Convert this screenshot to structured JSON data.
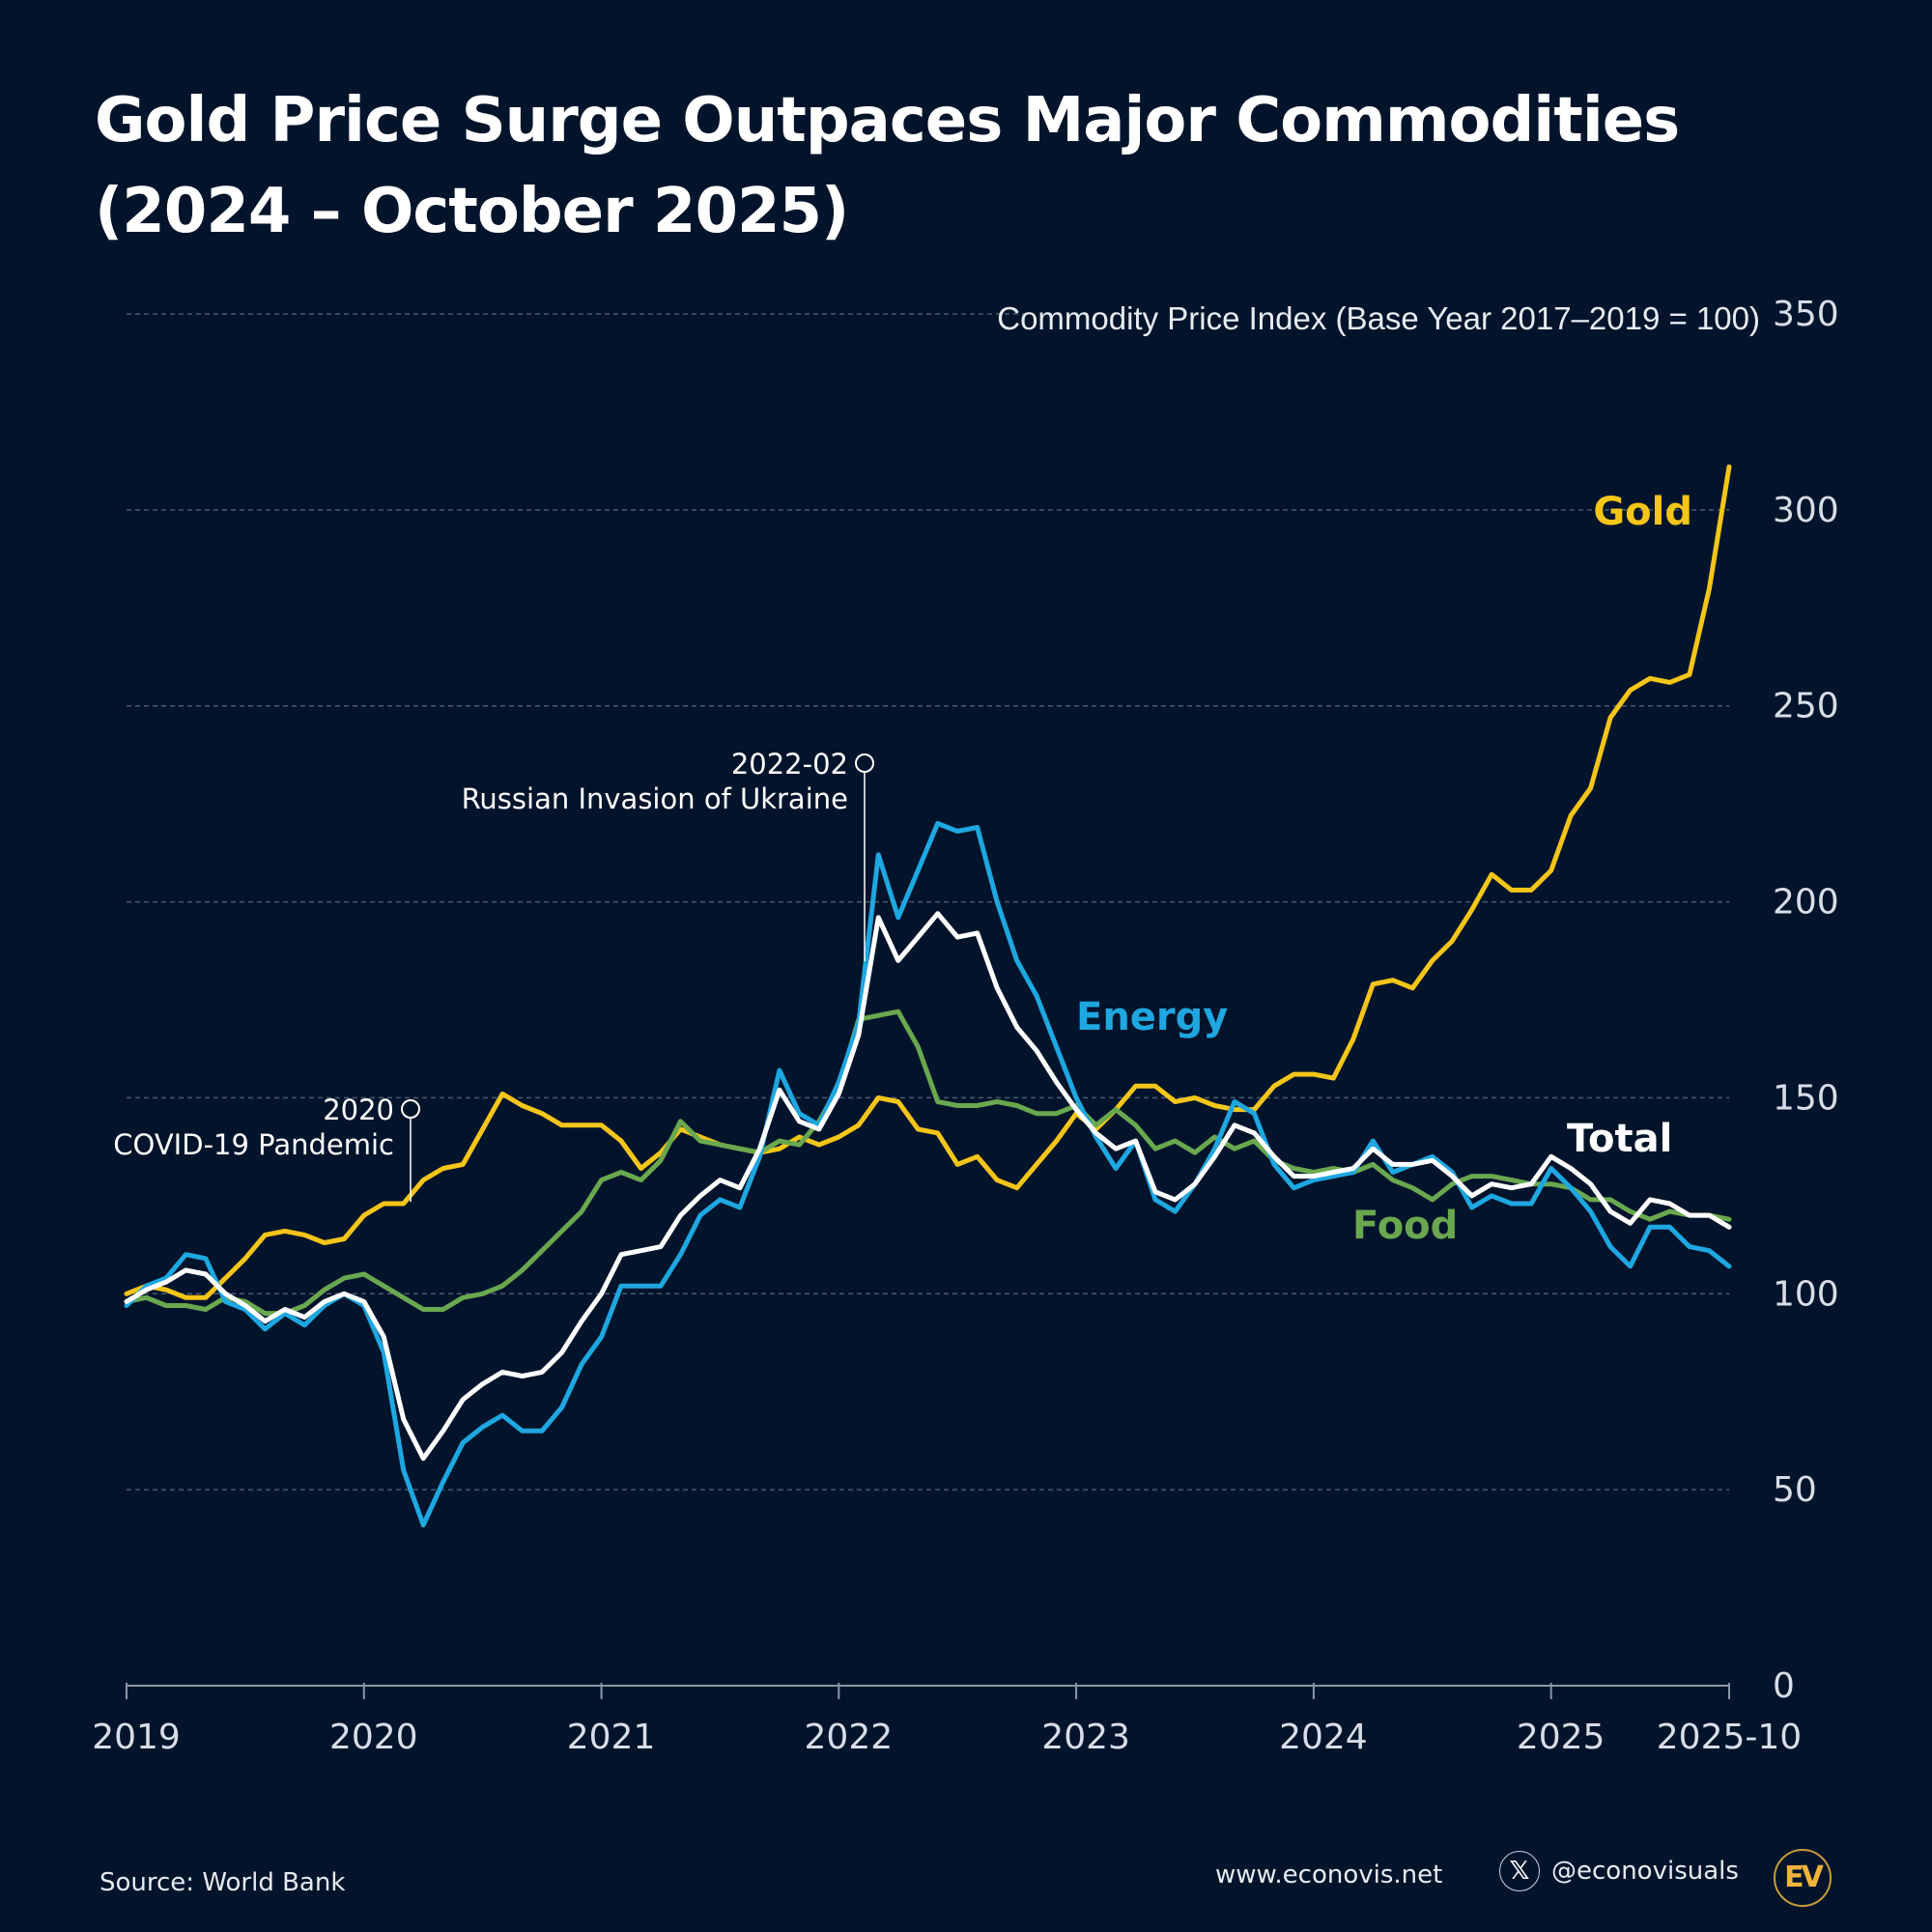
{
  "title_line1": "Gold Price Surge Outpaces Major Commodities",
  "title_line2": "(2024 – October 2025)",
  "footer": {
    "source": "Source: World Bank",
    "website": "www.econovis.net",
    "handle": "@econovisuals",
    "x_icon": "x-logo-icon",
    "logo_text": "EV"
  },
  "chart_data": {
    "type": "line",
    "ylabel": "Commodity Price Index (Base Year 2017–2019 = 100)",
    "ylim": [
      0,
      350
    ],
    "yticks": [
      "0",
      "50",
      "100",
      "150",
      "200",
      "250",
      "300",
      "350"
    ],
    "xticks": [
      "2019",
      "2020",
      "2021",
      "2022",
      "2023",
      "2024",
      "2025",
      "2025-10"
    ],
    "x_range": [
      "2019-01",
      "2025-10"
    ],
    "frequency": "monthly",
    "grid": "horizontal dashed",
    "annotations": [
      {
        "date": "2020",
        "text": "COVID-19 Pandemic",
        "at": "2020-03"
      },
      {
        "date": "2022-02",
        "text": "Russian Invasion of Ukraine",
        "at": "2022-02"
      }
    ],
    "series": [
      {
        "name": "Gold",
        "color": "#f5c518",
        "values": [
          100,
          102,
          101,
          99,
          99,
          104,
          109,
          115,
          116,
          115,
          113,
          114,
          120,
          123,
          123,
          129,
          132,
          133,
          142,
          151,
          148,
          146,
          143,
          143,
          143,
          139,
          132,
          136,
          142,
          140,
          138,
          137,
          136,
          137,
          140,
          138,
          140,
          143,
          150,
          149,
          142,
          141,
          133,
          135,
          129,
          127,
          133,
          139,
          146,
          142,
          147,
          153,
          153,
          149,
          150,
          148,
          147,
          147,
          153,
          156,
          156,
          155,
          165,
          179,
          180,
          178,
          185,
          190,
          198,
          207,
          203,
          203,
          208,
          222,
          229,
          247,
          254,
          257,
          256,
          258,
          280,
          311
        ]
      },
      {
        "name": "Energy",
        "color": "#1ea7e1",
        "values": [
          97,
          102,
          104,
          110,
          109,
          98,
          96,
          91,
          95,
          92,
          97,
          100,
          97,
          85,
          55,
          41,
          52,
          62,
          66,
          69,
          65,
          65,
          71,
          82,
          89,
          102,
          102,
          102,
          110,
          120,
          124,
          122,
          135,
          157,
          146,
          143,
          154,
          169,
          212,
          196,
          208,
          220,
          218,
          219,
          200,
          185,
          176,
          163,
          150,
          140,
          132,
          139,
          124,
          121,
          128,
          137,
          149,
          146,
          133,
          127,
          129,
          130,
          131,
          139,
          131,
          133,
          135,
          131,
          122,
          125,
          123,
          123,
          132,
          127,
          121,
          112,
          107,
          117,
          117,
          112,
          111,
          107
        ]
      },
      {
        "name": "Total",
        "color": "#ffffff",
        "values": [
          98,
          101,
          103,
          106,
          105,
          100,
          97,
          93,
          96,
          94,
          98,
          100,
          98,
          89,
          68,
          58,
          65,
          73,
          77,
          80,
          79,
          80,
          85,
          93,
          100,
          110,
          111,
          112,
          120,
          125,
          129,
          127,
          137,
          152,
          144,
          142,
          151,
          166,
          196,
          185,
          191,
          197,
          191,
          192,
          178,
          168,
          162,
          154,
          147,
          141,
          137,
          139,
          126,
          124,
          128,
          135,
          143,
          141,
          135,
          130,
          130,
          131,
          132,
          137,
          133,
          133,
          134,
          130,
          125,
          128,
          127,
          128,
          135,
          132,
          128,
          121,
          118,
          124,
          123,
          120,
          120,
          117
        ]
      },
      {
        "name": "Food",
        "color": "#6aa84f",
        "values": [
          98,
          99,
          97,
          97,
          96,
          99,
          98,
          95,
          95,
          97,
          101,
          104,
          105,
          102,
          99,
          96,
          96,
          99,
          100,
          102,
          106,
          111,
          116,
          121,
          129,
          131,
          129,
          134,
          144,
          139,
          138,
          137,
          136,
          139,
          138,
          144,
          153,
          170,
          171,
          172,
          163,
          149,
          148,
          148,
          149,
          148,
          146,
          146,
          148,
          143,
          147,
          143,
          137,
          139,
          136,
          140,
          137,
          139,
          134,
          132,
          131,
          132,
          131,
          133,
          129,
          127,
          124,
          128,
          130,
          130,
          129,
          128,
          128,
          127,
          124,
          124,
          121,
          119,
          121,
          120,
          120,
          119
        ]
      }
    ]
  }
}
